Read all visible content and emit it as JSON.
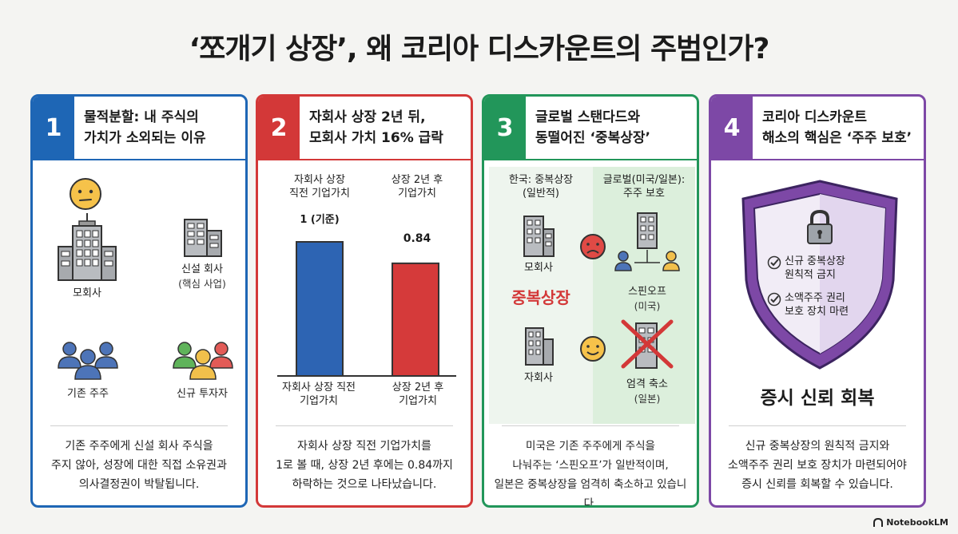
{
  "title": "‘쪼개기 상장’, 왜 코리아 디스카운트의 주범인가?",
  "brand": "NotebookLM",
  "colors": {
    "card1": "#1e66b5",
    "card2": "#d33838",
    "card3": "#22965a",
    "card4": "#7d48a6"
  },
  "card1": {
    "number": "1",
    "heading": "물적분할: 내 주식의\n가치가 소외되는 이유",
    "labels": {
      "parent": "모회사",
      "newco": "신설 회사",
      "newco_sub": "(핵심 사업)",
      "existing": "기존 주주",
      "new_investors": "신규 투자자"
    },
    "description": "기존 주주에게 신설 회사 주식을\n주지 않아, 성장에 대한 직접 소유권과\n의사결정권이 박탈됩니다."
  },
  "card2": {
    "number": "2",
    "heading": "자회사 상장 2년 뒤,\n모회사 가치 16% 급락",
    "description": "자회사 상장 직전 기업가치를\n1로 볼 때, 상장 2년 후에는 0.84까지\n하락하는 것으로 나타났습니다."
  },
  "chart_data": {
    "type": "bar",
    "categories": [
      "자회사 상장 직전 기업가치",
      "상장 2년 후 기업가치"
    ],
    "top_labels": [
      "자회사 상장\n직전 기업가치",
      "상장 2년 후\n기업가치"
    ],
    "bottom_labels": [
      "자회사 상장 직전\n기업가치",
      "상장 2년 후\n기업가치"
    ],
    "values": [
      1,
      0.84
    ],
    "value_labels": [
      "1 (기준)",
      "0.84"
    ],
    "bar_colors": [
      "#2d64b3",
      "#d53a3a"
    ],
    "ylim": [
      0,
      1
    ]
  },
  "card3": {
    "number": "3",
    "heading": "글로벌 스탠다드와\n동떨어진 ‘중복상장’",
    "korea_header": "한국: 중복상장\n(일반적)",
    "global_header": "글로벌(미국/일본):\n주주 보호",
    "parent": "모회사",
    "highlight": "중복상장",
    "child": "자회사",
    "spinoff": "스핀오프",
    "spinoff_sub": "(미국)",
    "restrict": "엄격 축소",
    "restrict_sub": "(일본)",
    "description": "미국은 기존 주주에게 주식을\n나눠주는 ‘스핀오프’가 일반적이며,\n일본은 중복상장을 엄격히 축소하고 있습니다."
  },
  "card4": {
    "number": "4",
    "heading": "코리아 디스카운트\n해소의 핵심은 ‘주주 보호’",
    "check1": "신규 중복상장\n원칙적 금지",
    "check2": "소액주주 권리\n보호 장치 마련",
    "recovery": "증시 신뢰 회복",
    "description": "신규 중복상장의 원칙적 금지와\n소액주주 권리 보호 장치가 마련되어야\n증시 신뢰를 회복할 수 있습니다."
  }
}
